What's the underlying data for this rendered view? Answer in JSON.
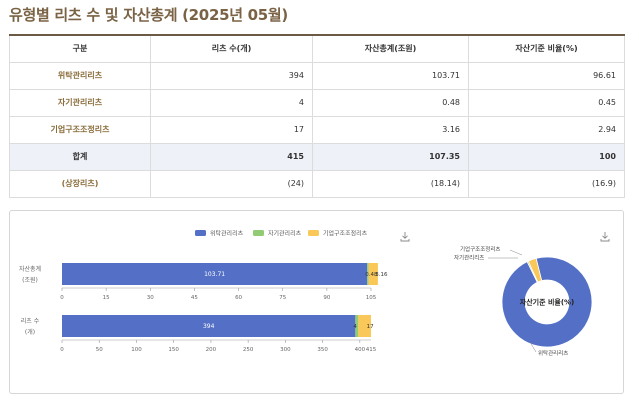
{
  "page": {
    "title": "유형별 리츠 수 및 자산총계 (2025년 05월)"
  },
  "table": {
    "headers": [
      "구분",
      "리츠 수(개)",
      "자산총계(조원)",
      "자산기준 비율(%)"
    ],
    "rows": [
      {
        "label": "위탁관리리츠",
        "count": "394",
        "assets": "103.71",
        "ratio": "96.61"
      },
      {
        "label": "자기관리리츠",
        "count": "4",
        "assets": "0.48",
        "ratio": "0.45"
      },
      {
        "label": "기업구조조정리츠",
        "count": "17",
        "assets": "3.16",
        "ratio": "2.94"
      },
      {
        "label": "합계",
        "count": "415",
        "assets": "107.35",
        "ratio": "100"
      },
      {
        "label": "(상장리츠)",
        "count": "(24)",
        "assets": "(18.14)",
        "ratio": "(16.9)"
      }
    ]
  },
  "colors": {
    "consigned": "#5470c6",
    "self": "#91cc75",
    "restructuring": "#fac858",
    "accent": "#7a6345"
  },
  "icons": {
    "download": "download-icon"
  },
  "chart_data": [
    {
      "type": "bar",
      "orientation": "horizontal",
      "stacked": true,
      "legend": [
        "위탁관리리츠",
        "자기관리리츠",
        "기업구조조정리츠"
      ],
      "legend_position": "top-center",
      "subplots": [
        {
          "category": [
            "자산총계",
            "(조원)"
          ],
          "xlim": [
            0,
            105
          ],
          "ticks": [
            "0",
            "15",
            "30",
            "45",
            "60",
            "75",
            "90",
            "105"
          ],
          "end_label": "",
          "series": [
            {
              "name": "위탁관리리츠",
              "value": 103.71,
              "label": "103.71"
            },
            {
              "name": "자기관리리츠",
              "value": 0.48,
              "label": "0.48"
            },
            {
              "name": "기업구조조정리츠",
              "value": 3.16,
              "label": "3.16"
            }
          ]
        },
        {
          "category": [
            "리츠 수",
            "(개)"
          ],
          "xlim": [
            0,
            415
          ],
          "ticks": [
            "0",
            "50",
            "100",
            "150",
            "200",
            "250",
            "300",
            "350",
            "400"
          ],
          "end_label": "415",
          "series": [
            {
              "name": "위탁관리리츠",
              "value": 394,
              "label": "394"
            },
            {
              "name": "자기관리리츠",
              "value": 4,
              "label": "4"
            },
            {
              "name": "기업구조조정리츠",
              "value": 17,
              "label": "17"
            }
          ]
        }
      ]
    },
    {
      "type": "pie",
      "donut": true,
      "center_label": "자산기준 비율(%)",
      "slices": [
        {
          "name": "위탁관리리츠",
          "value": 96.61
        },
        {
          "name": "자기관리리츠",
          "value": 0.45
        },
        {
          "name": "기업구조조정리츠",
          "value": 2.94
        }
      ]
    }
  ]
}
